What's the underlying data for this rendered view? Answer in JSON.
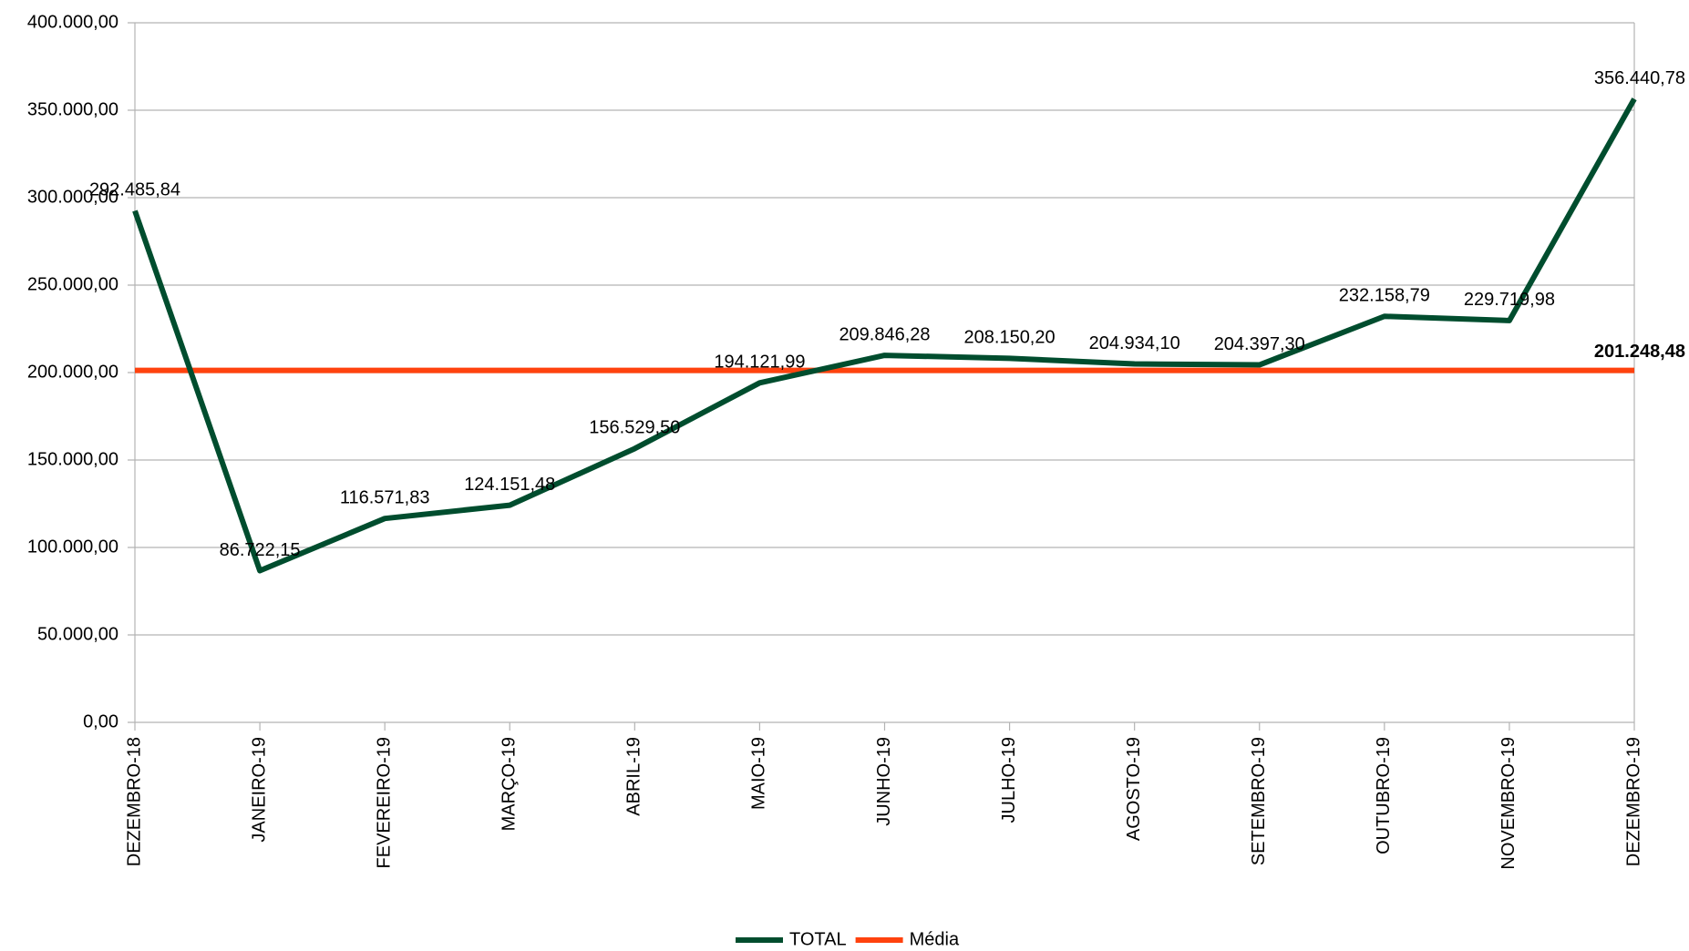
{
  "chart_data": {
    "type": "line",
    "categories": [
      "DEZEMBRO-18",
      "JANEIRO-19",
      "FEVEREIRO-19",
      "MARÇO-19",
      "ABRIL-19",
      "MAIO-19",
      "JUNHO-19",
      "JULHO-19",
      "AGOSTO-19",
      "SETEMBRO-19",
      "OUTUBRO-19",
      "NOVEMBRO-19",
      "DEZEMBRO-19"
    ],
    "series": [
      {
        "name": "TOTAL",
        "color": "#004d2e",
        "values": [
          292485.84,
          86722.15,
          116571.83,
          124151.48,
          156529.5,
          194121.99,
          209846.28,
          208150.2,
          204934.1,
          204397.3,
          232158.79,
          229719.98,
          356440.78
        ],
        "value_labels": [
          "292.485,84",
          "86.722,15",
          "116.571,83",
          "124.151,48",
          "156.529,50",
          "194.121,99",
          "209.846,28",
          "208.150,20",
          "204.934,10",
          "204.397,30",
          "232.158,79",
          "229.719,98",
          "356.440,78"
        ]
      },
      {
        "name": "Média",
        "color": "#ff420e",
        "values": [
          201248.48,
          201248.48,
          201248.48,
          201248.48,
          201248.48,
          201248.48,
          201248.48,
          201248.48,
          201248.48,
          201248.48,
          201248.48,
          201248.48,
          201248.48
        ],
        "value_labels": [
          null,
          null,
          null,
          null,
          null,
          null,
          null,
          null,
          null,
          null,
          null,
          null,
          "201.248,48"
        ]
      }
    ],
    "ylim": [
      0,
      400000
    ],
    "yticks": [
      {
        "value": 0,
        "label": "0,00"
      },
      {
        "value": 50000,
        "label": "50.000,00"
      },
      {
        "value": 100000,
        "label": "100.000,00"
      },
      {
        "value": 150000,
        "label": "150.000,00"
      },
      {
        "value": 200000,
        "label": "200.000,00"
      },
      {
        "value": 250000,
        "label": "250.000,00"
      },
      {
        "value": 300000,
        "label": "300.000,00"
      },
      {
        "value": 350000,
        "label": "350.000,00"
      },
      {
        "value": 400000,
        "label": "400.000,00"
      }
    ],
    "grid": true,
    "legend": "bottom"
  }
}
